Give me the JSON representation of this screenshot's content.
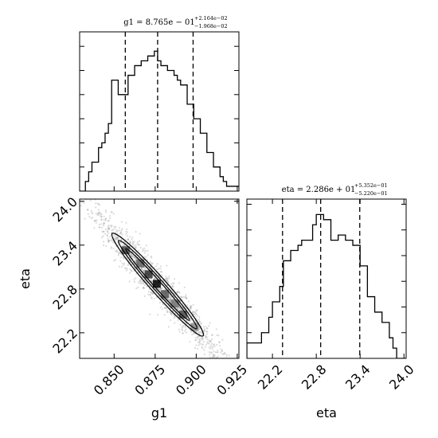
{
  "chart_data": {
    "type": "corner",
    "parameters": [
      "g1",
      "eta"
    ],
    "axis_labels": {
      "g1": "g1",
      "eta": "eta"
    },
    "titles": {
      "g1": {
        "main": "g1 = 8.765e − 01",
        "sup": "+2.164e−02",
        "sub": "−1.968e−02"
      },
      "eta": {
        "main": "eta = 2.286e + 01",
        "sup": "+5.352e−01",
        "sub": "−5.220e−01"
      }
    },
    "ranges": {
      "g1": [
        0.829,
        0.926
      ],
      "eta": [
        21.85,
        24.03
      ]
    },
    "ticks": {
      "g1": {
        "values": [
          0.85,
          0.875,
          0.9,
          0.925
        ],
        "labels": [
          "0.850",
          "0.875",
          "0.900",
          "0.925"
        ]
      },
      "eta": {
        "values": [
          22.2,
          22.8,
          23.4,
          24.0
        ],
        "labels": [
          "22.2",
          "22.8",
          "23.4",
          "24.0"
        ]
      }
    },
    "quantiles": {
      "g1": [
        0.8568,
        0.8765,
        0.8981
      ],
      "eta": [
        22.338,
        22.86,
        23.395
      ]
    },
    "histograms": {
      "g1": {
        "edges": [
          0.829,
          0.8325,
          0.8345,
          0.8365,
          0.8385,
          0.8405,
          0.8425,
          0.8445,
          0.8465,
          0.8485,
          0.8505,
          0.8525,
          0.8545,
          0.8565,
          0.8585,
          0.8605,
          0.8625,
          0.8645,
          0.8665,
          0.8685,
          0.8705,
          0.8725,
          0.8745,
          0.8765,
          0.8785,
          0.8805,
          0.8825,
          0.8845,
          0.8865,
          0.8885,
          0.8905,
          0.8925,
          0.8945,
          0.8965,
          0.8985,
          0.9005,
          0.9025,
          0.9045,
          0.9065,
          0.9085,
          0.9105,
          0.9125,
          0.9145,
          0.9165,
          0.9185,
          0.926
        ],
        "counts": [
          0,
          2,
          4,
          6,
          6,
          9,
          10,
          12,
          14,
          23,
          23,
          20,
          20,
          20,
          24,
          24,
          26,
          26,
          27,
          27,
          28,
          28,
          29,
          27,
          26,
          26,
          25,
          25,
          24,
          23,
          22,
          22,
          18,
          18,
          15,
          15,
          12,
          12,
          8,
          8,
          5,
          5,
          3,
          2,
          1
        ],
        "ylim": [
          0,
          33
        ]
      },
      "eta": {
        "edges": [
          21.85,
          22.0,
          22.05,
          22.1,
          22.15,
          22.2,
          22.25,
          22.3,
          22.35,
          22.4,
          22.45,
          22.5,
          22.55,
          22.6,
          22.65,
          22.7,
          22.75,
          22.8,
          22.85,
          22.9,
          22.95,
          23.0,
          23.05,
          23.1,
          23.15,
          23.2,
          23.25,
          23.3,
          23.35,
          23.4,
          23.45,
          23.5,
          23.55,
          23.6,
          23.65,
          23.7,
          23.75,
          23.8,
          23.85,
          23.9,
          24.03
        ],
        "counts": [
          3,
          3,
          5,
          5,
          8,
          11,
          11,
          14,
          19,
          19,
          21,
          21,
          22,
          23,
          23,
          23,
          26,
          28,
          28,
          27,
          27,
          23,
          23,
          24,
          24,
          23,
          23,
          22,
          22,
          18,
          18,
          12,
          12,
          9,
          9,
          7,
          7,
          4,
          2,
          0
        ],
        "ylim": [
          0,
          31
        ]
      }
    },
    "joint": {
      "x": "g1",
      "y": "eta",
      "correlation": -0.97,
      "scatter_extent": {
        "g1": [
          0.833,
          0.922
        ],
        "eta": [
          21.85,
          24.0
        ]
      }
    }
  }
}
